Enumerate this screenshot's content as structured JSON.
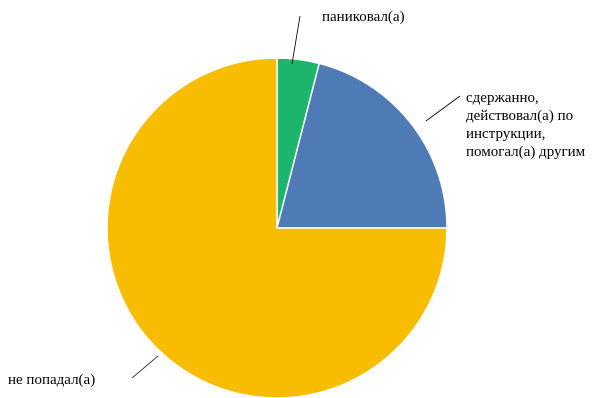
{
  "chart_data": {
    "type": "pie",
    "title": "",
    "legend": "none",
    "slices": [
      {
        "label": "паниковал(а)",
        "value": 4,
        "color": "#1db56c"
      },
      {
        "label": "сдержанно, действовал(а) по инструкции, помогал(а) другим",
        "value": 21,
        "color": "#4e7ab5"
      },
      {
        "label": "не попадал(а)",
        "value": 75,
        "color": "#f8bc00"
      }
    ],
    "label_lines": [
      [
        "паниковал(а)"
      ],
      [
        "сдержанно,",
        "действовал(а) по",
        "инструкции,",
        "помогал(а) другим"
      ],
      [
        "не попадал(а)"
      ]
    ]
  }
}
